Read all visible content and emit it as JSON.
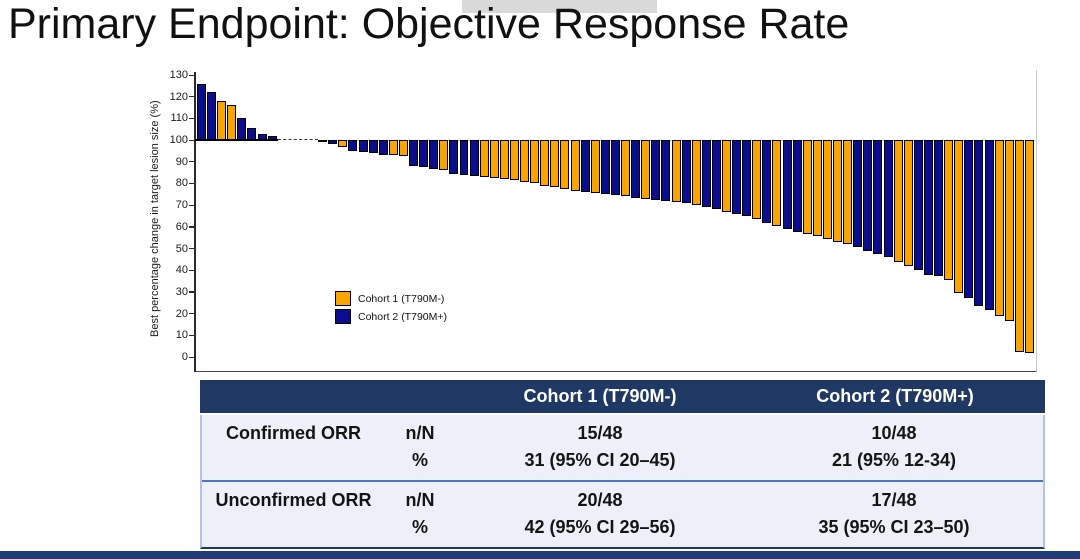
{
  "page": {
    "title": "Primary Endpoint: Objective Response Rate"
  },
  "chart_data": {
    "type": "bar",
    "subtype": "waterfall",
    "title": "",
    "xlabel": "",
    "ylabel": "Best percentage change in target lesion size (%)",
    "ylim": [
      0,
      130
    ],
    "yticks": [
      0,
      10,
      20,
      30,
      40,
      50,
      60,
      70,
      80,
      90,
      100,
      110,
      120,
      130
    ],
    "baseline": 100,
    "gap_after_bar_index": 8,
    "gap_slots": 4,
    "grid": false,
    "legend_position": "lower-left-inside",
    "legend": [
      {
        "key": "c1",
        "label": "Cohort 1 (T790M-)"
      },
      {
        "key": "c2",
        "label": "Cohort 2 (T790M+)"
      }
    ],
    "colors": {
      "c1": "#F9A400",
      "c2": "#0C0C8F"
    },
    "bars": [
      [
        "c2",
        126
      ],
      [
        "c2",
        122
      ],
      [
        "c1",
        118
      ],
      [
        "c1",
        116
      ],
      [
        "c2",
        110
      ],
      [
        "c2",
        105.5
      ],
      [
        "c2",
        103
      ],
      [
        "c2",
        102
      ],
      [
        "c2",
        99
      ],
      [
        "c2",
        98
      ],
      [
        "c1",
        97
      ],
      [
        "c2",
        95
      ],
      [
        "c2",
        94.5
      ],
      [
        "c2",
        94
      ],
      [
        "c2",
        93
      ],
      [
        "c1",
        93
      ],
      [
        "c1",
        92.5
      ],
      [
        "c2",
        88
      ],
      [
        "c2",
        87.5
      ],
      [
        "c2",
        86.5
      ],
      [
        "c1",
        86
      ],
      [
        "c2",
        84.5
      ],
      [
        "c2",
        84
      ],
      [
        "c2",
        83.5
      ],
      [
        "c1",
        83
      ],
      [
        "c1",
        82.5
      ],
      [
        "c1",
        82
      ],
      [
        "c1",
        81.5
      ],
      [
        "c1",
        80.5
      ],
      [
        "c1",
        80
      ],
      [
        "c1",
        79
      ],
      [
        "c1",
        78.5
      ],
      [
        "c1",
        77.5
      ],
      [
        "c1",
        76.5
      ],
      [
        "c2",
        76
      ],
      [
        "c1",
        75.5
      ],
      [
        "c2",
        75
      ],
      [
        "c2",
        74.5
      ],
      [
        "c1",
        74
      ],
      [
        "c2",
        73.5
      ],
      [
        "c1",
        73
      ],
      [
        "c2",
        72.5
      ],
      [
        "c2",
        72
      ],
      [
        "c1",
        71.5
      ],
      [
        "c2",
        71
      ],
      [
        "c1",
        70
      ],
      [
        "c2",
        69
      ],
      [
        "c2",
        68
      ],
      [
        "c1",
        67
      ],
      [
        "c2",
        66
      ],
      [
        "c2",
        65
      ],
      [
        "c1",
        63.5
      ],
      [
        "c2",
        62
      ],
      [
        "c1",
        60.5
      ],
      [
        "c2",
        59
      ],
      [
        "c2",
        57.5
      ],
      [
        "c1",
        56.5
      ],
      [
        "c1",
        56
      ],
      [
        "c1",
        54.5
      ],
      [
        "c1",
        53
      ],
      [
        "c1",
        52
      ],
      [
        "c2",
        50.5
      ],
      [
        "c2",
        49
      ],
      [
        "c2",
        47.5
      ],
      [
        "c2",
        46
      ],
      [
        "c1",
        44
      ],
      [
        "c1",
        42
      ],
      [
        "c2",
        40
      ],
      [
        "c2",
        38
      ],
      [
        "c2",
        37.5
      ],
      [
        "c1",
        35.5
      ],
      [
        "c1",
        29.5
      ],
      [
        "c2",
        27
      ],
      [
        "c2",
        23.5
      ],
      [
        "c2",
        21.5
      ],
      [
        "c1",
        19
      ],
      [
        "c1",
        16.5
      ],
      [
        "c1",
        2.5
      ],
      [
        "c1",
        2
      ]
    ]
  },
  "table": {
    "header": {
      "col3": "Cohort 1 (T790M-)",
      "col4": "Cohort 2 (T790M+)"
    },
    "rows": [
      {
        "label": "Confirmed ORR",
        "lines": [
          {
            "metric": "n/N",
            "c1": "15/48",
            "c2": "10/48"
          },
          {
            "metric": "%",
            "c1": "31 (95% CI 20–45)",
            "c2": "21 (95% 12-34)"
          }
        ]
      },
      {
        "label": "Unconfirmed ORR",
        "lines": [
          {
            "metric": "n/N",
            "c1": "20/48",
            "c2": "17/48"
          },
          {
            "metric": "%",
            "c1": "42 (95% CI 29–56)",
            "c2": "35 (95% CI 23–50)"
          }
        ]
      }
    ]
  }
}
